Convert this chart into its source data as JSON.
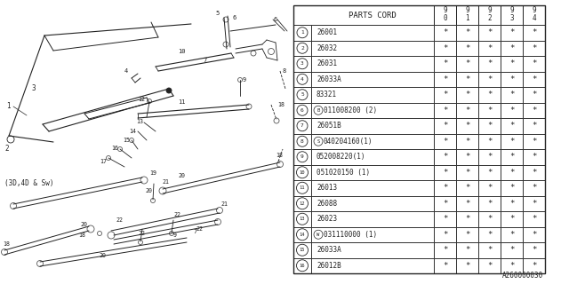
{
  "bg_color": "#ffffff",
  "line_color": "#555555",
  "dark_color": "#222222",
  "watermark": "A260000030",
  "table_header": [
    "PARTS CORD",
    "9\n0",
    "9\n1",
    "9\n2",
    "9\n3",
    "9\n4"
  ],
  "rows": [
    [
      "1",
      "26001",
      "*",
      "*",
      "*",
      "*",
      "*"
    ],
    [
      "2",
      "26032",
      "*",
      "*",
      "*",
      "*",
      "*"
    ],
    [
      "3",
      "26031",
      "*",
      "*",
      "*",
      "*",
      "*"
    ],
    [
      "4",
      "26033A",
      "*",
      "*",
      "*",
      "*",
      "*"
    ],
    [
      "5",
      "83321",
      "*",
      "*",
      "*",
      "*",
      "*"
    ],
    [
      "6",
      "B011008200 (2)",
      "*",
      "*",
      "*",
      "*",
      "*"
    ],
    [
      "7",
      "26051B",
      "*",
      "*",
      "*",
      "*",
      "*"
    ],
    [
      "8",
      "S040204160(1)",
      "*",
      "*",
      "*",
      "*",
      "*"
    ],
    [
      "9",
      "052008220(1)",
      "*",
      "*",
      "*",
      "*",
      "*"
    ],
    [
      "10",
      "051020150 (1)",
      "*",
      "*",
      "*",
      "*",
      "*"
    ],
    [
      "11",
      "26013",
      "*",
      "*",
      "*",
      "*",
      "*"
    ],
    [
      "12",
      "26088",
      "*",
      "*",
      "*",
      "*",
      "*"
    ],
    [
      "13",
      "26023",
      "*",
      "*",
      "*",
      "*",
      "*"
    ],
    [
      "14",
      "W031110000 (1)",
      "*",
      "*",
      "*",
      "*",
      "*"
    ],
    [
      "15",
      "26033A",
      "*",
      "*",
      "*",
      "*",
      "*"
    ],
    [
      "16",
      "26012B",
      "*",
      "*",
      "*",
      "*",
      "*"
    ]
  ],
  "label_note": "(3D, 4D & Sw)"
}
